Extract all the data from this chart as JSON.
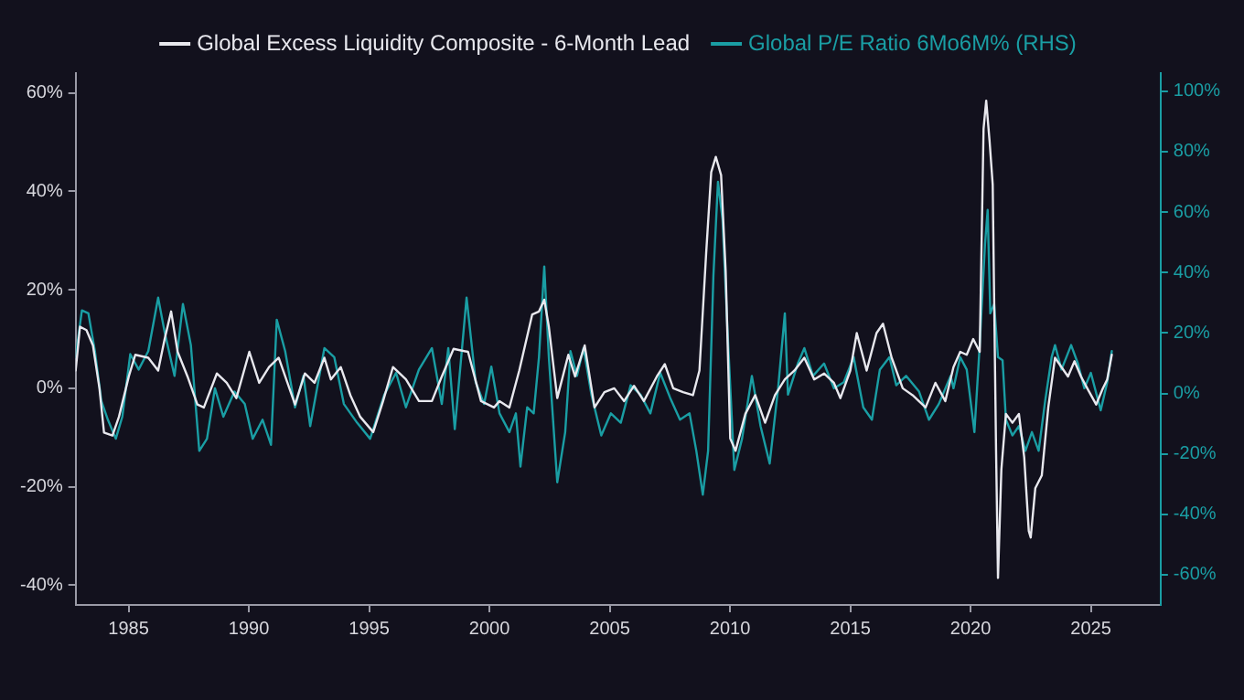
{
  "chart_data": {
    "type": "line",
    "legend": "top",
    "grid": false,
    "marker": "none",
    "line_style": "solid",
    "xlim": [
      1982.8,
      2027.9
    ],
    "xticks": [
      1985,
      1990,
      1995,
      2000,
      2005,
      2010,
      2015,
      2020,
      2025
    ],
    "ylim": [
      -44,
      64
    ],
    "yticks": [
      {
        "value": -40,
        "label": "-40%"
      },
      {
        "value": -20,
        "label": "-20%"
      },
      {
        "value": 0,
        "label": "0%"
      },
      {
        "value": 20,
        "label": "20%"
      },
      {
        "value": 40,
        "label": "40%"
      },
      {
        "value": 60,
        "label": "60%"
      }
    ],
    "y2lim": [
      -70,
      106
    ],
    "y2ticks": [
      {
        "value": -60,
        "label": "-60%"
      },
      {
        "value": -40,
        "label": "-40%"
      },
      {
        "value": -20,
        "label": "-20%"
      },
      {
        "value": 0,
        "label": "0%"
      },
      {
        "value": 20,
        "label": "20%"
      },
      {
        "value": 40,
        "label": "40%"
      },
      {
        "value": 60,
        "label": "60%"
      },
      {
        "value": 80,
        "label": "80%"
      },
      {
        "value": 100,
        "label": "100%"
      }
    ],
    "series": [
      {
        "name": "Global Excess Liquidity Composite - 6-Month Lead",
        "color": "#e8e8ee",
        "x": [
          1982.8,
          1982.98,
          1983.25,
          1983.52,
          1983.79,
          1983.98,
          1984.33,
          1984.6,
          1985.01,
          1985.28,
          1985.82,
          1986.23,
          1986.5,
          1986.77,
          1987.04,
          1987.45,
          1987.86,
          1988.13,
          1988.67,
          1989.08,
          1989.48,
          1990.02,
          1990.43,
          1990.84,
          1991.24,
          1991.92,
          1992.33,
          1992.73,
          1993.14,
          1993.41,
          1993.82,
          1994.22,
          1994.63,
          1995.17,
          1995.58,
          1995.99,
          1996.53,
          1997.07,
          1997.61,
          1998.02,
          1998.51,
          1999.11,
          1999.65,
          2000.19,
          2000.42,
          2000.83,
          2001.24,
          2001.78,
          2002.06,
          2002.28,
          2002.47,
          2002.82,
          2003.28,
          2003.56,
          2003.96,
          2004.37,
          2004.78,
          2005.19,
          2005.6,
          2006.01,
          2006.42,
          2006.96,
          2007.29,
          2007.64,
          2008.05,
          2008.46,
          2008.73,
          2009.01,
          2009.22,
          2009.41,
          2009.63,
          2009.82,
          2010.01,
          2010.23,
          2010.64,
          2011.05,
          2011.46,
          2011.87,
          2012.28,
          2012.68,
          2013.09,
          2013.5,
          2013.91,
          2014.32,
          2014.59,
          2015.0,
          2015.27,
          2015.68,
          2016.09,
          2016.36,
          2016.72,
          2017.18,
          2017.59,
          2018.13,
          2018.54,
          2018.95,
          2019.29,
          2019.57,
          2019.84,
          2020.11,
          2020.38,
          2020.54,
          2020.65,
          2020.79,
          2020.92,
          2021.06,
          2021.14,
          2021.28,
          2021.47,
          2021.74,
          2022.01,
          2022.23,
          2022.42,
          2022.5,
          2022.69,
          2022.96,
          2023.23,
          2023.51,
          2023.78,
          2024.05,
          2024.32,
          2024.59,
          2024.86,
          2025.22,
          2025.49,
          2025.68,
          2025.87
        ],
        "values": [
          3.6,
          12.5,
          11.8,
          8.7,
          0,
          -9,
          -9.6,
          -5.8,
          2.4,
          6.8,
          6.2,
          3.6,
          10,
          15.6,
          7.4,
          2.4,
          -3.3,
          -3.9,
          3,
          1.1,
          -2,
          7.4,
          1.1,
          4.3,
          6.2,
          -3.3,
          3,
          1.1,
          6.2,
          1.8,
          4.3,
          -1.4,
          -5.8,
          -8.9,
          -2.6,
          4.3,
          1.8,
          -2.6,
          -2.6,
          2.4,
          8,
          7.4,
          -2.6,
          -3.9,
          -2.6,
          -3.9,
          3.6,
          15,
          15.6,
          18,
          12.5,
          -2,
          6.8,
          2.4,
          8.7,
          -3.9,
          -0.8,
          0,
          -2.6,
          0.5,
          -2.6,
          2.4,
          4.9,
          0,
          -0.8,
          -1.4,
          3.6,
          27.5,
          43.9,
          47,
          43.3,
          23.8,
          -10.2,
          -12.7,
          -5.2,
          -1.4,
          -7,
          -1.4,
          1.8,
          3.6,
          6.2,
          1.8,
          3,
          1.1,
          -2,
          3.6,
          11.2,
          3.6,
          11.2,
          13.1,
          6.2,
          0,
          -1.4,
          -3.9,
          1.1,
          -2.6,
          4.3,
          7.4,
          6.8,
          10,
          7.4,
          52.7,
          58.4,
          50.2,
          41.4,
          -12.7,
          -38.5,
          -16.5,
          -5.2,
          -7,
          -5.2,
          -14,
          -29,
          -30.3,
          -20.3,
          -17.7,
          -3.9,
          6.2,
          4.3,
          2.4,
          5.5,
          2.4,
          -0.1,
          -3.3,
          -0.1,
          1.8,
          6.8
        ]
      },
      {
        "name": "Global P/E Ratio 6Mo6M% (RHS)",
        "color": "#1a9ea4",
        "axis": "y2",
        "x": [
          1982.8,
          1983.06,
          1983.33,
          1983.6,
          1983.87,
          1984.14,
          1984.47,
          1984.74,
          1985.07,
          1985.42,
          1985.82,
          1986.23,
          1986.5,
          1986.91,
          1987.26,
          1987.59,
          1987.94,
          1988.26,
          1988.59,
          1988.94,
          1989.4,
          1989.83,
          1990.16,
          1990.57,
          1990.92,
          1991.16,
          1991.51,
          1991.92,
          1992.27,
          1992.55,
          1993.14,
          1993.55,
          1993.95,
          1994.5,
          1995.04,
          1995.63,
          1996.12,
          1996.53,
          1997.07,
          1997.61,
          1998.02,
          1998.29,
          1998.56,
          1999.05,
          1999.43,
          1999.78,
          2000.08,
          2000.42,
          2000.83,
          2001.1,
          2001.29,
          2001.57,
          2001.84,
          2002.06,
          2002.28,
          2002.47,
          2002.82,
          2003.15,
          2003.37,
          2003.64,
          2003.91,
          2004.24,
          2004.65,
          2005.05,
          2005.46,
          2005.87,
          2006.28,
          2006.69,
          2007.1,
          2007.51,
          2007.92,
          2008.32,
          2008.6,
          2008.87,
          2009.09,
          2009.31,
          2009.5,
          2009.69,
          2009.9,
          2010.18,
          2010.5,
          2010.91,
          2011.27,
          2011.65,
          2012.0,
          2012.28,
          2012.41,
          2012.82,
          2013.09,
          2013.45,
          2013.91,
          2014.32,
          2014.73,
          2015.14,
          2015.54,
          2015.9,
          2016.23,
          2016.63,
          2016.91,
          2017.32,
          2017.86,
          2018.27,
          2018.68,
          2019.17,
          2019.29,
          2019.57,
          2019.84,
          2020.16,
          2020.38,
          2020.6,
          2020.71,
          2020.82,
          2020.98,
          2021.14,
          2021.33,
          2021.47,
          2021.74,
          2022.01,
          2022.28,
          2022.55,
          2022.83,
          2023.1,
          2023.37,
          2023.51,
          2023.78,
          2024.18,
          2024.46,
          2024.73,
          2025.0,
          2025.41,
          2025.68,
          2025.87
        ],
        "values": [
          12,
          27.5,
          26.5,
          14,
          -2.5,
          -8.7,
          -15,
          -7.7,
          13,
          7.9,
          14,
          31.7,
          20.3,
          5.8,
          29.6,
          16,
          -19,
          -15,
          1.7,
          -7.7,
          0.6,
          -3.5,
          -15,
          -8.7,
          -17,
          24.4,
          14,
          -4.6,
          5.8,
          -10.8,
          15,
          12,
          -3.5,
          -9.7,
          -15,
          -0.4,
          6.8,
          -4.6,
          7.9,
          15,
          -3.5,
          15,
          -11.8,
          31.7,
          3.7,
          -3.5,
          8.9,
          -6.6,
          -12.8,
          -6.6,
          -24.2,
          -4.6,
          -6.6,
          12,
          42,
          12,
          -29.4,
          -12.8,
          14,
          5.8,
          15,
          -0.4,
          -13.9,
          -6.6,
          -9.7,
          2.7,
          -0.4,
          -6.6,
          6.8,
          -1.4,
          -8.7,
          -6.6,
          -19,
          -33.5,
          -19,
          38.9,
          70,
          57.6,
          20.3,
          -25.3,
          -15,
          5.8,
          -10.8,
          -23.2,
          1.7,
          26.5,
          -0.4,
          9.9,
          15,
          5.8,
          9.9,
          1.7,
          3.7,
          12,
          -4.6,
          -8.7,
          7.9,
          12,
          2.7,
          5.8,
          0.6,
          -8.7,
          -3.5,
          5.8,
          1.7,
          12,
          7.9,
          -12.8,
          16,
          49.3,
          60.7,
          26.5,
          29.6,
          12,
          11,
          -8.7,
          -13.9,
          -10.8,
          -19,
          -12.8,
          -19,
          -2.5,
          12,
          16,
          7.9,
          16,
          9.9,
          1.7,
          6.8,
          -5.6,
          3.7,
          14
        ]
      }
    ]
  }
}
